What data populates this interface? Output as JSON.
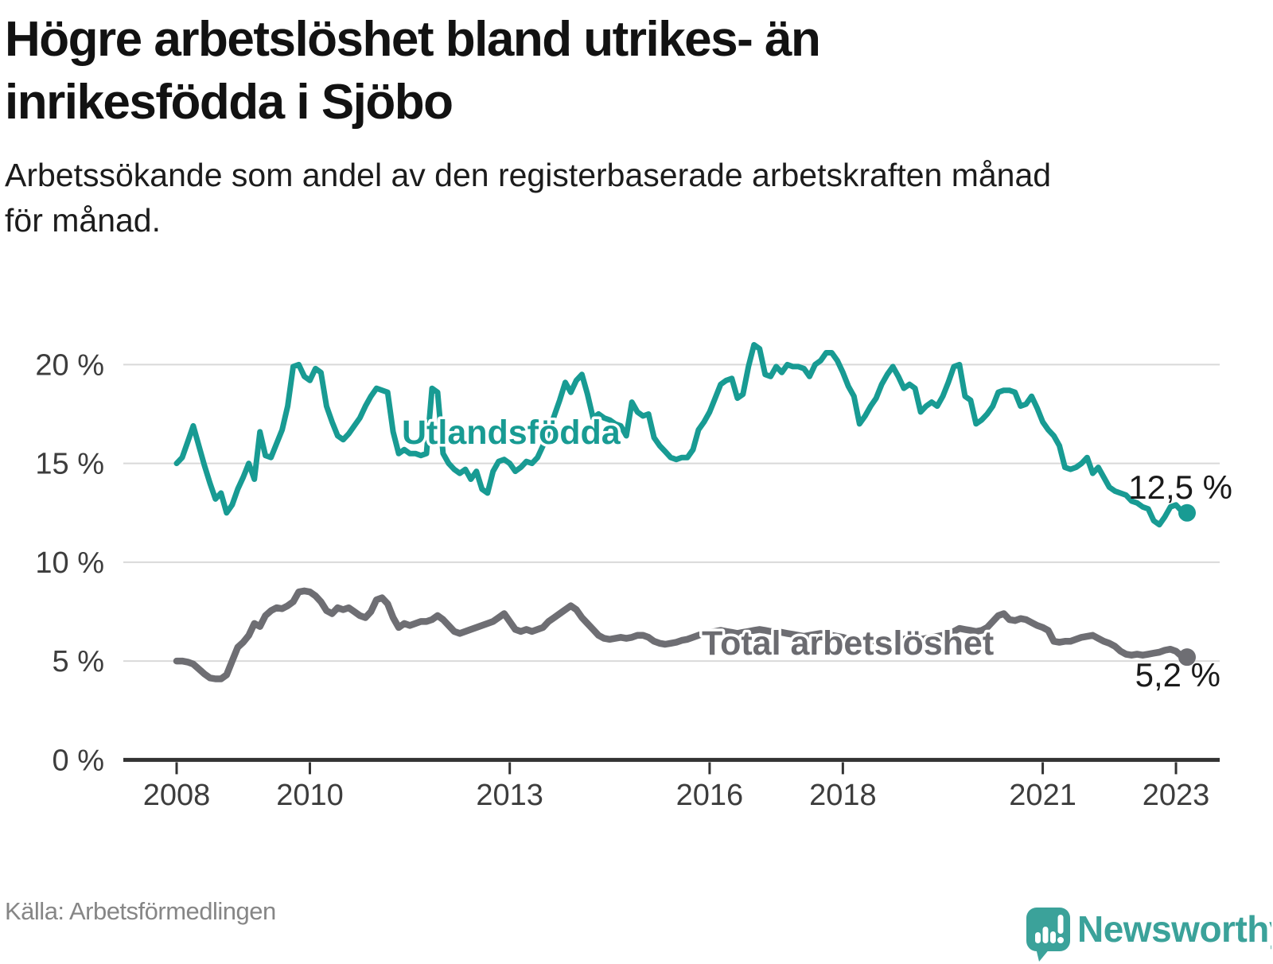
{
  "header": {
    "title_line1": "Högre arbetslöshet bland utrikes- än",
    "title_line2": "inrikesfödda i Sjöbo",
    "subtitle_line1": "Arbetssökande som andel av den registerbaserade arbetskraften månad",
    "subtitle_line2": "för månad."
  },
  "footer": {
    "source": "Källa: Arbetsförmedlingen",
    "logo_text": "Newsworthy"
  },
  "colors": {
    "teal_line": "#189b93",
    "gray_line": "#6e6e73",
    "gray_label": "#6b6b70",
    "gridline": "#d9d9d9",
    "axis": "#333333",
    "axis_text": "#3d3d3d",
    "value_text": "#1a1a1a",
    "logo_teal": "#3ba29a"
  },
  "chart_data": {
    "type": "line",
    "title": "Högre arbetslöshet bland utrikes- än inrikesfödda i Sjöbo",
    "subtitle": "Arbetssökande som andel av den registerbaserade arbetskraften månad för månad.",
    "unit": "%",
    "frequency": "monthly",
    "x_start": "2008-01",
    "x_end": "2023-03",
    "xlabel": "",
    "ylabel": "",
    "ylim": [
      0,
      21.5
    ],
    "grid": "horizontal",
    "legend_position": "inline-labels",
    "y_ticks": [
      0,
      5,
      10,
      15,
      20
    ],
    "y_tick_labels": [
      "0 %",
      "5 %",
      "10 %",
      "15 %",
      "20 %"
    ],
    "x_tick_years": [
      2008,
      2010,
      2013,
      2016,
      2018,
      2021,
      2023
    ],
    "x_tick_labels": [
      "2008",
      "2010",
      "2013",
      "2016",
      "2018",
      "2021",
      "2023"
    ],
    "series": [
      {
        "name": "Utlandsfödda",
        "color": "#189b93",
        "end_value": 12.5,
        "end_label": "12,5 %",
        "values": [
          15.0,
          15.3,
          16.1,
          16.9,
          15.9,
          14.9,
          14.0,
          13.2,
          13.5,
          12.5,
          12.9,
          13.7,
          14.3,
          15.0,
          14.2,
          16.6,
          15.4,
          15.3,
          16.0,
          16.7,
          17.9,
          19.9,
          20.0,
          19.4,
          19.2,
          19.8,
          19.6,
          17.9,
          17.1,
          16.4,
          16.2,
          16.5,
          16.9,
          17.3,
          17.9,
          18.4,
          18.8,
          18.7,
          18.6,
          16.6,
          15.5,
          15.7,
          15.5,
          15.5,
          15.4,
          15.5,
          18.8,
          18.6,
          15.5,
          15.0,
          14.7,
          14.5,
          14.7,
          14.2,
          14.6,
          13.7,
          13.5,
          14.6,
          15.1,
          15.2,
          15.0,
          14.6,
          14.8,
          15.1,
          15.0,
          15.3,
          15.9,
          16.6,
          17.4,
          18.2,
          19.1,
          18.6,
          19.2,
          19.5,
          18.5,
          17.3,
          17.5,
          17.3,
          17.2,
          17.0,
          16.9,
          16.4,
          18.1,
          17.6,
          17.4,
          17.5,
          16.3,
          15.9,
          15.6,
          15.3,
          15.2,
          15.3,
          15.3,
          15.7,
          16.7,
          17.1,
          17.6,
          18.3,
          19.0,
          19.2,
          19.3,
          18.3,
          18.5,
          19.9,
          21.0,
          20.8,
          19.5,
          19.4,
          19.9,
          19.6,
          20.0,
          19.9,
          19.9,
          19.8,
          19.4,
          20.0,
          20.2,
          20.6,
          20.6,
          20.2,
          19.6,
          18.9,
          18.4,
          17.0,
          17.4,
          17.9,
          18.3,
          19.0,
          19.5,
          19.9,
          19.4,
          18.8,
          19.0,
          18.8,
          17.6,
          17.9,
          18.1,
          17.9,
          18.4,
          19.1,
          19.9,
          20.0,
          18.4,
          18.2,
          17.0,
          17.2,
          17.5,
          17.9,
          18.6,
          18.7,
          18.7,
          18.6,
          17.9,
          18.0,
          18.4,
          17.8,
          17.1,
          16.7,
          16.4,
          15.9,
          14.8,
          14.7,
          14.8,
          15.0,
          15.3,
          14.5,
          14.8,
          14.3,
          13.8,
          13.6,
          13.5,
          13.4,
          13.1,
          13.0,
          12.8,
          12.7,
          12.1,
          11.9,
          12.3,
          12.8,
          12.9,
          12.6,
          12.5
        ]
      },
      {
        "name": "Total arbetslöshet",
        "color": "#6e6e73",
        "end_value": 5.2,
        "end_label": "5,2 %",
        "values": [
          5.0,
          5.0,
          4.95,
          4.85,
          4.6,
          4.35,
          4.15,
          4.1,
          4.1,
          4.3,
          5.0,
          5.7,
          5.95,
          6.3,
          6.9,
          6.75,
          7.3,
          7.55,
          7.7,
          7.65,
          7.8,
          8.0,
          8.5,
          8.55,
          8.5,
          8.3,
          8.0,
          7.55,
          7.4,
          7.7,
          7.6,
          7.7,
          7.5,
          7.3,
          7.2,
          7.5,
          8.1,
          8.2,
          7.9,
          7.2,
          6.7,
          6.9,
          6.8,
          6.9,
          7.0,
          7.0,
          7.1,
          7.3,
          7.1,
          6.8,
          6.5,
          6.4,
          6.5,
          6.6,
          6.7,
          6.8,
          6.9,
          7.0,
          7.2,
          7.4,
          7.0,
          6.6,
          6.5,
          6.6,
          6.5,
          6.6,
          6.7,
          7.0,
          7.2,
          7.4,
          7.6,
          7.8,
          7.6,
          7.2,
          6.9,
          6.6,
          6.3,
          6.15,
          6.1,
          6.15,
          6.2,
          6.15,
          6.2,
          6.3,
          6.3,
          6.2,
          6.0,
          5.9,
          5.85,
          5.9,
          5.95,
          6.05,
          6.1,
          6.2,
          6.3,
          6.4,
          6.45,
          6.5,
          6.55,
          6.5,
          6.45,
          6.4,
          6.45,
          6.5,
          6.55,
          6.6,
          6.55,
          6.5,
          6.5,
          6.45,
          6.4,
          6.35,
          6.3,
          6.25,
          6.3,
          6.35,
          6.4,
          6.35,
          6.3,
          6.25,
          6.2,
          6.1,
          6.05,
          6.0,
          5.95,
          6.0,
          6.05,
          6.1,
          6.05,
          6.0,
          6.05,
          6.1,
          6.2,
          6.15,
          6.1,
          6.15,
          6.2,
          6.25,
          6.3,
          6.4,
          6.5,
          6.65,
          6.6,
          6.55,
          6.5,
          6.55,
          6.7,
          7.0,
          7.3,
          7.4,
          7.1,
          7.05,
          7.15,
          7.1,
          6.95,
          6.8,
          6.7,
          6.55,
          6.0,
          5.95,
          6.0,
          6.0,
          6.1,
          6.2,
          6.25,
          6.3,
          6.15,
          6.0,
          5.9,
          5.75,
          5.5,
          5.35,
          5.3,
          5.35,
          5.3,
          5.35,
          5.4,
          5.45,
          5.55,
          5.6,
          5.5,
          5.25,
          5.2
        ]
      }
    ]
  }
}
